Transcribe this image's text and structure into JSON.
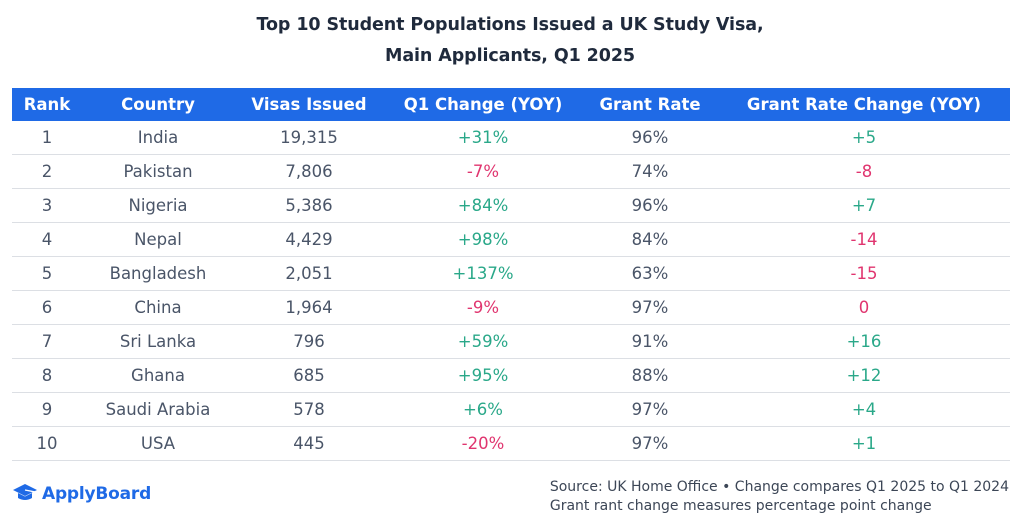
{
  "title": {
    "line1": "Top 10 Student Populations Issued a UK Study Visa,",
    "line2": "Main Applicants, Q1 2025"
  },
  "headers": [
    "Rank",
    "Country",
    "Visas Issued",
    "Q1 Change (YOY)",
    "Grant Rate",
    "Grant Rate Change (YOY)"
  ],
  "rows": [
    {
      "rank": "1",
      "country": "India",
      "visas": "19,315",
      "q1_change": "+31%",
      "grant_rate": "96%",
      "grant_change": "+5"
    },
    {
      "rank": "2",
      "country": "Pakistan",
      "visas": "7,806",
      "q1_change": "-7%",
      "grant_rate": "74%",
      "grant_change": "-8"
    },
    {
      "rank": "3",
      "country": "Nigeria",
      "visas": "5,386",
      "q1_change": "+84%",
      "grant_rate": "96%",
      "grant_change": "+7"
    },
    {
      "rank": "4",
      "country": "Nepal",
      "visas": "4,429",
      "q1_change": "+98%",
      "grant_rate": "84%",
      "grant_change": "-14"
    },
    {
      "rank": "5",
      "country": "Bangladesh",
      "visas": "2,051",
      "q1_change": "+137%",
      "grant_rate": "63%",
      "grant_change": "-15"
    },
    {
      "rank": "6",
      "country": "China",
      "visas": "1,964",
      "q1_change": "-9%",
      "grant_rate": "97%",
      "grant_change": "0"
    },
    {
      "rank": "7",
      "country": "Sri Lanka",
      "visas": "796",
      "q1_change": "+59%",
      "grant_rate": "91%",
      "grant_change": "+16"
    },
    {
      "rank": "8",
      "country": "Ghana",
      "visas": "685",
      "q1_change": "+95%",
      "grant_rate": "88%",
      "grant_change": "+12"
    },
    {
      "rank": "9",
      "country": "Saudi Arabia",
      "visas": "578",
      "q1_change": "+6%",
      "grant_rate": "97%",
      "grant_change": "+4"
    },
    {
      "rank": "10",
      "country": "USA",
      "visas": "445",
      "q1_change": "-20%",
      "grant_rate": "97%",
      "grant_change": "+1"
    }
  ],
  "chart_data": {
    "type": "table",
    "title": "Top 10 Student Populations Issued a UK Study Visa, Main Applicants, Q1 2025",
    "columns": [
      "Rank",
      "Country",
      "Visas Issued",
      "Q1 Change (YOY)",
      "Grant Rate",
      "Grant Rate Change (YOY)"
    ],
    "countries": [
      "India",
      "Pakistan",
      "Nigeria",
      "Nepal",
      "Bangladesh",
      "China",
      "Sri Lanka",
      "Ghana",
      "Saudi Arabia",
      "USA"
    ],
    "visas_issued": [
      19315,
      7806,
      5386,
      4429,
      2051,
      1964,
      796,
      685,
      578,
      445
    ],
    "q1_change_pct": [
      31,
      -7,
      84,
      98,
      137,
      -9,
      59,
      95,
      6,
      -20
    ],
    "grant_rate_pct": [
      96,
      74,
      96,
      84,
      63,
      97,
      91,
      88,
      97,
      97
    ],
    "grant_rate_change_pts": [
      5,
      -8,
      7,
      -14,
      -15,
      0,
      16,
      12,
      4,
      1
    ]
  },
  "colors": {
    "header_bg": "#1f6ae6",
    "positive": "#2aa889",
    "negative": "#e0356f",
    "brand": "#1f6ae6"
  },
  "footer": {
    "logo_text": "ApplyBoard",
    "logo_icon": "graduation-cap-icon",
    "source_line1": "Source: UK Home Office • Change compares Q1 2025 to Q1 2024",
    "source_line2": "Grant rant change measures percentage point change"
  }
}
